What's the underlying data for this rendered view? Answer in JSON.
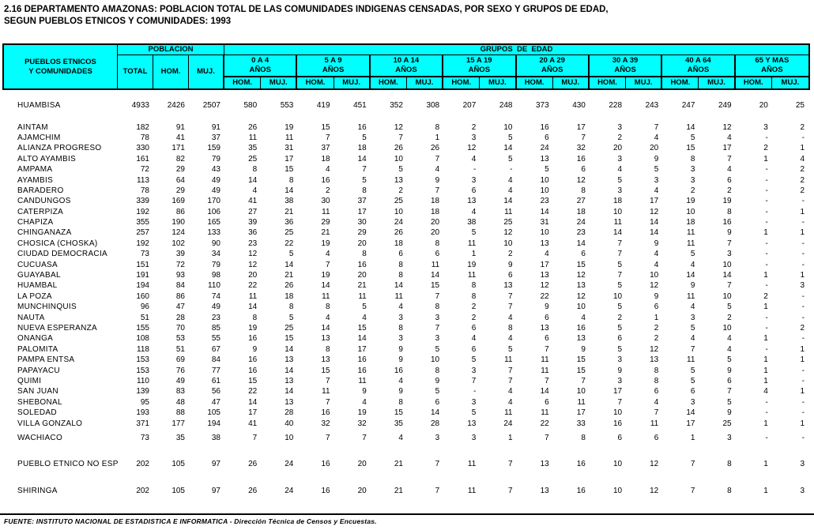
{
  "title": {
    "line1": "2.16 DEPARTAMENTO AMAZONAS: POBLACION TOTAL DE LAS COMUNIDADES INDIGENAS CENSADAS, POR SEXO Y GRUPOS DE EDAD,",
    "line2": "SEGUN PUEBLOS ETNICOS Y COMUNIDADES: 1993"
  },
  "colors": {
    "header_bg": "#00FFFF",
    "border": "#000000",
    "page_bg": "#FFFFFF"
  },
  "header": {
    "pueblos_line1": "PUEBLOS ETNICOS",
    "pueblos_line2": "Y COMUNIDADES",
    "poblacion": "POBLACION",
    "grupos": "GRUPOS  DE  EDAD",
    "total": "TOTAL",
    "hom": "HOM.",
    "muj": "MUJ.",
    "anos": "AÑOS",
    "age_groups": [
      "0 A 4",
      "5 A 9",
      "10 A 14",
      "15 A 19",
      "20 A 29",
      "30 A 39",
      "40 A 64",
      "65 Y MAS"
    ]
  },
  "rows": [
    {
      "name": "HUAMBISA",
      "gap": 0,
      "values": [
        "4933",
        "2426",
        "2507",
        "580",
        "553",
        "419",
        "451",
        "352",
        "308",
        "207",
        "248",
        "373",
        "430",
        "228",
        "243",
        "247",
        "249",
        "20",
        "25"
      ]
    },
    {
      "name": "AINTAM",
      "gap": 14,
      "values": [
        "182",
        "91",
        "91",
        "26",
        "19",
        "15",
        "16",
        "12",
        "8",
        "2",
        "10",
        "16",
        "17",
        "3",
        "7",
        "14",
        "12",
        "3",
        "2"
      ]
    },
    {
      "name": "AJAMCHIM",
      "gap": 0,
      "values": [
        "78",
        "41",
        "37",
        "11",
        "11",
        "7",
        "5",
        "7",
        "1",
        "3",
        "5",
        "6",
        "7",
        "2",
        "4",
        "5",
        "4",
        "-",
        "-"
      ]
    },
    {
      "name": "ALIANZA PROGRESO",
      "gap": 0,
      "values": [
        "330",
        "171",
        "159",
        "35",
        "31",
        "37",
        "18",
        "26",
        "26",
        "12",
        "14",
        "24",
        "32",
        "20",
        "20",
        "15",
        "17",
        "2",
        "1"
      ]
    },
    {
      "name": "ALTO AYAMBIS",
      "gap": 0,
      "values": [
        "161",
        "82",
        "79",
        "25",
        "17",
        "18",
        "14",
        "10",
        "7",
        "4",
        "5",
        "13",
        "16",
        "3",
        "9",
        "8",
        "7",
        "1",
        "4"
      ]
    },
    {
      "name": "AMPAMA",
      "gap": 0,
      "values": [
        "72",
        "29",
        "43",
        "8",
        "15",
        "4",
        "7",
        "5",
        "4",
        "-",
        "-",
        "5",
        "6",
        "4",
        "5",
        "3",
        "4",
        "-",
        "2"
      ]
    },
    {
      "name": "AYAMBIS",
      "gap": 0,
      "values": [
        "113",
        "64",
        "49",
        "14",
        "8",
        "16",
        "5",
        "13",
        "9",
        "3",
        "4",
        "10",
        "12",
        "5",
        "3",
        "3",
        "6",
        "-",
        "2"
      ]
    },
    {
      "name": "BARADERO",
      "gap": 0,
      "values": [
        "78",
        "29",
        "49",
        "4",
        "14",
        "2",
        "8",
        "2",
        "7",
        "6",
        "4",
        "10",
        "8",
        "3",
        "4",
        "2",
        "2",
        "-",
        "2"
      ]
    },
    {
      "name": "CANDUNGOS",
      "gap": 0,
      "values": [
        "339",
        "169",
        "170",
        "41",
        "38",
        "30",
        "37",
        "25",
        "18",
        "13",
        "14",
        "23",
        "27",
        "18",
        "17",
        "19",
        "19",
        "-",
        "-"
      ]
    },
    {
      "name": "CATERPIZA",
      "gap": 0,
      "values": [
        "192",
        "86",
        "106",
        "27",
        "21",
        "11",
        "17",
        "10",
        "18",
        "4",
        "11",
        "14",
        "18",
        "10",
        "12",
        "10",
        "8",
        "-",
        "1"
      ]
    },
    {
      "name": "CHAPIZA",
      "gap": 0,
      "values": [
        "355",
        "190",
        "165",
        "39",
        "36",
        "29",
        "30",
        "24",
        "20",
        "38",
        "25",
        "31",
        "24",
        "11",
        "14",
        "18",
        "16",
        "-",
        "-"
      ]
    },
    {
      "name": "CHINGANAZA",
      "gap": 0,
      "values": [
        "257",
        "124",
        "133",
        "36",
        "25",
        "21",
        "29",
        "26",
        "20",
        "5",
        "12",
        "10",
        "23",
        "14",
        "14",
        "11",
        "9",
        "1",
        "1"
      ]
    },
    {
      "name": "CHOSICA (CHOSKA)",
      "gap": 0,
      "values": [
        "192",
        "102",
        "90",
        "23",
        "22",
        "19",
        "20",
        "18",
        "8",
        "11",
        "10",
        "13",
        "14",
        "7",
        "9",
        "11",
        "7",
        "-",
        "-"
      ]
    },
    {
      "name": "CIUDAD DEMOCRACIA",
      "gap": 0,
      "values": [
        "73",
        "39",
        "34",
        "12",
        "5",
        "4",
        "8",
        "6",
        "6",
        "1",
        "2",
        "4",
        "6",
        "7",
        "4",
        "5",
        "3",
        "-",
        "-"
      ]
    },
    {
      "name": "CUCUASA",
      "gap": 0,
      "values": [
        "151",
        "72",
        "79",
        "12",
        "14",
        "7",
        "16",
        "8",
        "11",
        "19",
        "9",
        "17",
        "15",
        "5",
        "4",
        "4",
        "10",
        "-",
        "-"
      ]
    },
    {
      "name": "GUAYABAL",
      "gap": 0,
      "values": [
        "191",
        "93",
        "98",
        "20",
        "21",
        "19",
        "20",
        "8",
        "14",
        "11",
        "6",
        "13",
        "12",
        "7",
        "10",
        "14",
        "14",
        "1",
        "1"
      ]
    },
    {
      "name": "HUAMBAL",
      "gap": 0,
      "values": [
        "194",
        "84",
        "110",
        "22",
        "26",
        "14",
        "21",
        "14",
        "15",
        "8",
        "13",
        "12",
        "13",
        "5",
        "12",
        "9",
        "7",
        "-",
        "3"
      ]
    },
    {
      "name": "LA POZA",
      "gap": 0,
      "values": [
        "160",
        "86",
        "74",
        "11",
        "18",
        "11",
        "11",
        "11",
        "7",
        "8",
        "7",
        "22",
        "12",
        "10",
        "9",
        "11",
        "10",
        "2",
        "-"
      ]
    },
    {
      "name": "MUNCHINQUIS",
      "gap": 0,
      "values": [
        "96",
        "47",
        "49",
        "14",
        "8",
        "8",
        "5",
        "4",
        "8",
        "2",
        "7",
        "9",
        "10",
        "5",
        "6",
        "4",
        "5",
        "1",
        "-"
      ]
    },
    {
      "name": "NAUTA",
      "gap": 0,
      "values": [
        "51",
        "28",
        "23",
        "8",
        "5",
        "4",
        "4",
        "3",
        "3",
        "2",
        "4",
        "6",
        "4",
        "2",
        "1",
        "3",
        "2",
        "-",
        "-"
      ]
    },
    {
      "name": "NUEVA ESPERANZA",
      "gap": 0,
      "values": [
        "155",
        "70",
        "85",
        "19",
        "25",
        "14",
        "15",
        "8",
        "7",
        "6",
        "8",
        "13",
        "16",
        "5",
        "2",
        "5",
        "10",
        "-",
        "2"
      ]
    },
    {
      "name": "ONANGA",
      "gap": 0,
      "values": [
        "108",
        "53",
        "55",
        "16",
        "15",
        "13",
        "14",
        "3",
        "3",
        "4",
        "4",
        "6",
        "13",
        "6",
        "2",
        "4",
        "4",
        "1",
        "-"
      ]
    },
    {
      "name": "PALOMITA",
      "gap": 0,
      "values": [
        "118",
        "51",
        "67",
        "9",
        "14",
        "8",
        "17",
        "9",
        "5",
        "6",
        "5",
        "7",
        "9",
        "5",
        "12",
        "7",
        "4",
        "-",
        "1"
      ]
    },
    {
      "name": "PAMPA ENTSA",
      "gap": 0,
      "values": [
        "153",
        "69",
        "84",
        "16",
        "13",
        "13",
        "16",
        "9",
        "10",
        "5",
        "11",
        "11",
        "15",
        "3",
        "13",
        "11",
        "5",
        "1",
        "1"
      ]
    },
    {
      "name": "PAPAYACU",
      "gap": 0,
      "values": [
        "153",
        "76",
        "77",
        "16",
        "14",
        "15",
        "16",
        "16",
        "8",
        "3",
        "7",
        "11",
        "15",
        "9",
        "8",
        "5",
        "9",
        "1",
        "-"
      ]
    },
    {
      "name": "QUIMI",
      "gap": 0,
      "values": [
        "110",
        "49",
        "61",
        "15",
        "13",
        "7",
        "11",
        "4",
        "9",
        "7",
        "7",
        "7",
        "7",
        "3",
        "8",
        "5",
        "6",
        "1",
        "-"
      ]
    },
    {
      "name": "SAN JUAN",
      "gap": 0,
      "values": [
        "139",
        "83",
        "56",
        "22",
        "14",
        "11",
        "9",
        "9",
        "5",
        "-",
        "4",
        "14",
        "10",
        "17",
        "6",
        "6",
        "7",
        "4",
        "1"
      ]
    },
    {
      "name": "SHEBONAL",
      "gap": 0,
      "values": [
        "95",
        "48",
        "47",
        "14",
        "13",
        "7",
        "4",
        "8",
        "6",
        "3",
        "4",
        "6",
        "11",
        "7",
        "4",
        "3",
        "5",
        "-",
        "-"
      ]
    },
    {
      "name": "SOLEDAD",
      "gap": 0,
      "values": [
        "193",
        "88",
        "105",
        "17",
        "28",
        "16",
        "19",
        "15",
        "14",
        "5",
        "11",
        "11",
        "17",
        "10",
        "7",
        "14",
        "9",
        "-",
        "-"
      ]
    },
    {
      "name": "VILLA GONZALO",
      "gap": 0,
      "values": [
        "371",
        "177",
        "194",
        "41",
        "40",
        "32",
        "32",
        "35",
        "28",
        "13",
        "24",
        "22",
        "33",
        "16",
        "11",
        "17",
        "25",
        "1",
        "1"
      ]
    },
    {
      "name": "WACHIACO",
      "gap": 5,
      "values": [
        "73",
        "35",
        "38",
        "7",
        "10",
        "7",
        "7",
        "4",
        "3",
        "3",
        "1",
        "7",
        "8",
        "6",
        "6",
        "1",
        "3",
        "-",
        "-"
      ]
    },
    {
      "name": "PUEBLO ETNICO NO ESPEC",
      "gap": 20,
      "values": [
        "202",
        "105",
        "97",
        "26",
        "24",
        "16",
        "20",
        "21",
        "7",
        "11",
        "7",
        "13",
        "16",
        "10",
        "12",
        "7",
        "8",
        "1",
        "3"
      ]
    },
    {
      "name": "SHIRINGA",
      "gap": 20,
      "values": [
        "202",
        "105",
        "97",
        "26",
        "24",
        "16",
        "20",
        "21",
        "7",
        "11",
        "7",
        "13",
        "16",
        "10",
        "12",
        "7",
        "8",
        "1",
        "3"
      ]
    }
  ],
  "footer": {
    "fuente": "FUENTE: INSTITUTO NACIONAL DE ESTADISTICA E INFORMATICA - Dirección Técnica de Censos y Encuestas."
  }
}
